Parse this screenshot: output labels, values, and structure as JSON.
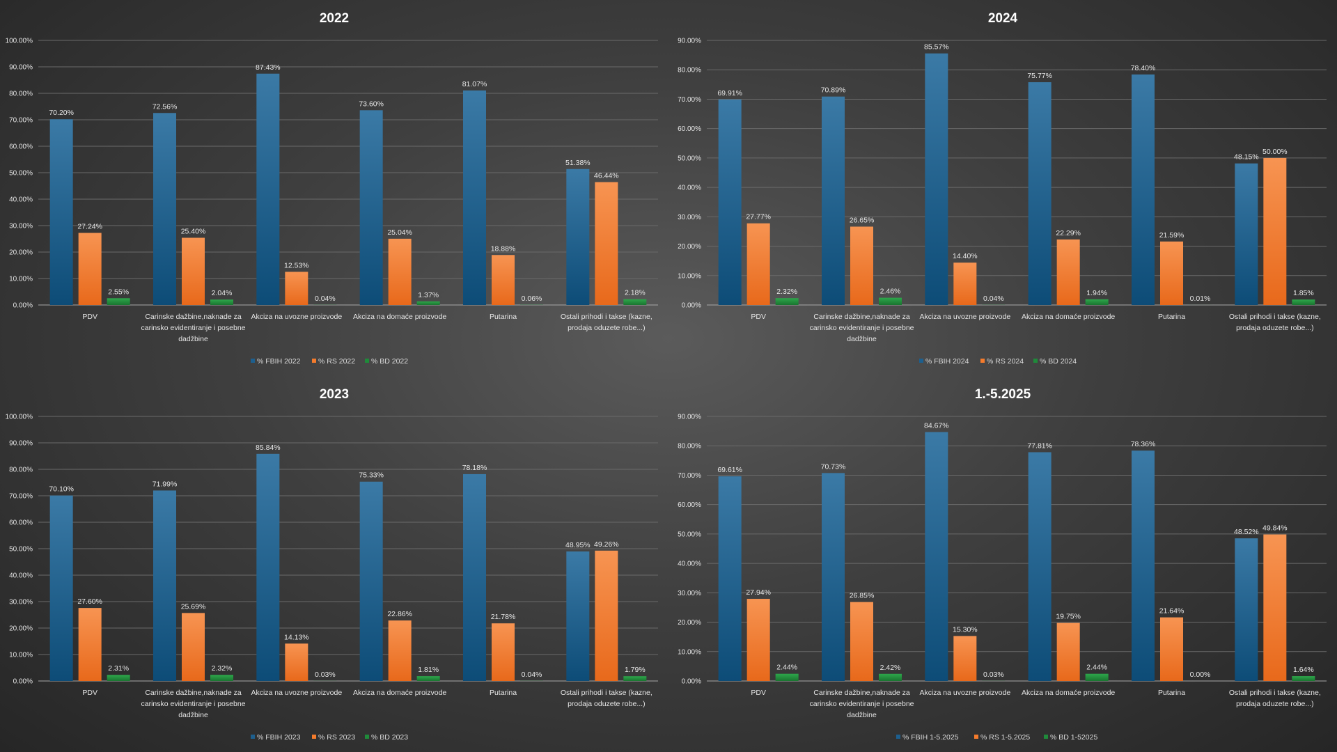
{
  "colors": {
    "fbih": "#1d5f8e",
    "rs": "#f47b2c",
    "bd": "#1f8a3a"
  },
  "chart_data": [
    {
      "type": "bar",
      "title": "2022",
      "ylim": [
        0,
        100
      ],
      "yticks": [
        "0.00%",
        "10.00%",
        "20.00%",
        "30.00%",
        "40.00%",
        "50.00%",
        "60.00%",
        "70.00%",
        "80.00%",
        "90.00%",
        "100.00%"
      ],
      "categories": [
        [
          "PDV"
        ],
        [
          "Carinske dažbine,naknade za",
          "carinsko evidentiranje i posebne",
          "dadžbine"
        ],
        [
          "Akciza na uvozne proizvode"
        ],
        [
          "Akciza na domaće proizvode"
        ],
        [
          "Putarina"
        ],
        [
          "Ostali prihodi i takse (kazne,",
          "prodaja oduzete robe...)"
        ]
      ],
      "series": [
        {
          "name": "% FBIH 2022",
          "values": [
            70.2,
            72.56,
            87.43,
            73.6,
            81.07,
            51.38
          ],
          "labels": [
            "70.20%",
            "72.56%",
            "87.43%",
            "73.60%",
            "81.07%",
            "51.38%"
          ]
        },
        {
          "name": "% RS 2022",
          "values": [
            27.24,
            25.4,
            12.53,
            25.04,
            18.88,
            46.44
          ],
          "labels": [
            "27.24%",
            "25.40%",
            "12.53%",
            "25.04%",
            "18.88%",
            "46.44%"
          ]
        },
        {
          "name": "% BD 2022",
          "values": [
            2.55,
            2.04,
            0.04,
            1.37,
            0.06,
            2.18
          ],
          "labels": [
            "2.55%",
            "2.04%",
            "0.04%",
            "1.37%",
            "0.06%",
            "2.18%"
          ]
        }
      ],
      "legend": "bottom",
      "grid": true
    },
    {
      "type": "bar",
      "title": "2024",
      "ylim": [
        0,
        90
      ],
      "yticks": [
        "0.00%",
        "10.00%",
        "20.00%",
        "30.00%",
        "40.00%",
        "50.00%",
        "60.00%",
        "70.00%",
        "80.00%",
        "90.00%"
      ],
      "categories": [
        [
          "PDV"
        ],
        [
          "Carinske dažbine,naknade za",
          "carinsko evidentiranje i posebne",
          "dadžbine"
        ],
        [
          "Akciza na uvozne proizvode"
        ],
        [
          "Akciza na domaće proizvode"
        ],
        [
          "Putarina"
        ],
        [
          "Ostali prihodi i takse (kazne,",
          "prodaja oduzete robe...)"
        ]
      ],
      "series": [
        {
          "name": "% FBIH 2024",
          "values": [
            69.91,
            70.89,
            85.57,
            75.77,
            78.4,
            48.15
          ],
          "labels": [
            "69.91%",
            "70.89%",
            "85.57%",
            "75.77%",
            "78.40%",
            "48.15%"
          ]
        },
        {
          "name": "% RS 2024",
          "values": [
            27.77,
            26.65,
            14.4,
            22.29,
            21.59,
            50.0
          ],
          "labels": [
            "27.77%",
            "26.65%",
            "14.40%",
            "22.29%",
            "21.59%",
            "50.00%"
          ]
        },
        {
          "name": "% BD 2024",
          "values": [
            2.32,
            2.46,
            0.04,
            1.94,
            0.01,
            1.85
          ],
          "labels": [
            "2.32%",
            "2.46%",
            "0.04%",
            "1.94%",
            "0.01%",
            "1.85%"
          ]
        }
      ],
      "legend": "bottom",
      "grid": true
    },
    {
      "type": "bar",
      "title": "2023",
      "ylim": [
        0,
        100
      ],
      "yticks": [
        "0.00%",
        "10.00%",
        "20.00%",
        "30.00%",
        "40.00%",
        "50.00%",
        "60.00%",
        "70.00%",
        "80.00%",
        "90.00%",
        "100.00%"
      ],
      "categories": [
        [
          "PDV"
        ],
        [
          "Carinske dažbine,naknade za",
          "carinsko evidentiranje i posebne",
          "dadžbine"
        ],
        [
          "Akciza na uvozne proizvode"
        ],
        [
          "Akciza na domaće proizvode"
        ],
        [
          "Putarina"
        ],
        [
          "Ostali prihodi i takse (kazne,",
          "prodaja oduzete robe...)"
        ]
      ],
      "series": [
        {
          "name": "% FBIH 2023",
          "values": [
            70.1,
            71.99,
            85.84,
            75.33,
            78.18,
            48.95
          ],
          "labels": [
            "70.10%",
            "71.99%",
            "85.84%",
            "75.33%",
            "78.18%",
            "48.95%"
          ]
        },
        {
          "name": "% RS 2023",
          "values": [
            27.6,
            25.69,
            14.13,
            22.86,
            21.78,
            49.26
          ],
          "labels": [
            "27.60%",
            "25.69%",
            "14.13%",
            "22.86%",
            "21.78%",
            "49.26%"
          ]
        },
        {
          "name": "% BD 2023",
          "values": [
            2.31,
            2.32,
            0.03,
            1.81,
            0.04,
            1.79
          ],
          "labels": [
            "2.31%",
            "2.32%",
            "0.03%",
            "1.81%",
            "0.04%",
            "1.79%"
          ]
        }
      ],
      "legend": "bottom",
      "grid": true
    },
    {
      "type": "bar",
      "title": "1.-5.2025",
      "ylim": [
        0,
        90
      ],
      "yticks": [
        "0.00%",
        "10.00%",
        "20.00%",
        "30.00%",
        "40.00%",
        "50.00%",
        "60.00%",
        "70.00%",
        "80.00%",
        "90.00%"
      ],
      "categories": [
        [
          "PDV"
        ],
        [
          "Carinske dažbine,naknade za",
          "carinsko evidentiranje i posebne",
          "dadžbine"
        ],
        [
          "Akciza na uvozne proizvode"
        ],
        [
          "Akciza na domaće proizvode"
        ],
        [
          "Putarina"
        ],
        [
          "Ostali prihodi i takse (kazne,",
          "prodaja oduzete robe...)"
        ]
      ],
      "series": [
        {
          "name": "% FBIH 1-5.2025",
          "values": [
            69.61,
            70.73,
            84.67,
            77.81,
            78.36,
            48.52
          ],
          "labels": [
            "69.61%",
            "70.73%",
            "84.67%",
            "77.81%",
            "78.36%",
            "48.52%"
          ]
        },
        {
          "name": "% RS 1-5.2025",
          "values": [
            27.94,
            26.85,
            15.3,
            19.75,
            21.64,
            49.84
          ],
          "labels": [
            "27.94%",
            "26.85%",
            "15.30%",
            "19.75%",
            "21.64%",
            "49.84%"
          ]
        },
        {
          "name": "% BD 1-52025",
          "values": [
            2.44,
            2.42,
            0.03,
            2.44,
            0.0,
            1.64
          ],
          "labels": [
            "2.44%",
            "2.42%",
            "0.03%",
            "2.44%",
            "0.00%",
            "1.64%"
          ]
        }
      ],
      "legend": "bottom",
      "grid": true
    }
  ]
}
